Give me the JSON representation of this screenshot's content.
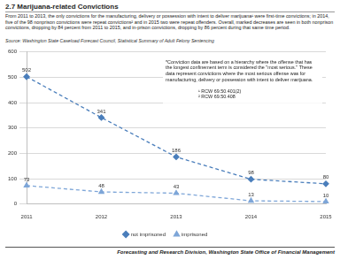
{
  "header": {
    "title": "2.7 Marijuana-related Convictions"
  },
  "paragraph": "From 2011 to 2013, the only convictions for the manufacturing, delivery or possession with intent to deliver marijuana¹ were first-time convictions; in 2014, five of the 98 nonprison convictions were repeat convictions² and in 2015 two were repeat offenders. Overall, marked decreases are seen in both nonprison convictions, dropping by 84 percent from 2011 to 2015, and in-prison convictions, dropping by 86 percent during that same time period.",
  "source": "Source: Washington State Caseload Forecast Council, Statistical Summary of Adult Felony Sentencing",
  "chart_data": {
    "type": "line",
    "categories": [
      "2011",
      "2012",
      "2013",
      "2014",
      "2015"
    ],
    "series": [
      {
        "name": "not imprisoned",
        "color": "#4a7ebb",
        "marker": "diamond",
        "line_style": "dashed",
        "values": [
          502,
          341,
          186,
          98,
          80
        ]
      },
      {
        "name": "imprisoned",
        "color": "#7ea6d8",
        "marker": "triangle",
        "line_style": "dashed",
        "values": [
          73,
          48,
          43,
          13,
          10
        ]
      }
    ],
    "ylim": [
      0,
      600
    ],
    "yticks": [
      0,
      100,
      200,
      300,
      400,
      500,
      600
    ],
    "grid": true,
    "legend": "bottom",
    "data_labels": true,
    "annotations": [
      "*Conviction data are based on a hierarchy where the offense that has the longest confinement term is considered the \"most serious.\" These data represent convictions where the most serious offense was for manufacturing, delivery or possession with intent to deliver marijuana.",
      "¹ RCW 69.50.401(2)",
      "² RCW 69.50.408"
    ]
  },
  "footer": "Forecasting and Research Division, Washington State Office of Financial Management"
}
